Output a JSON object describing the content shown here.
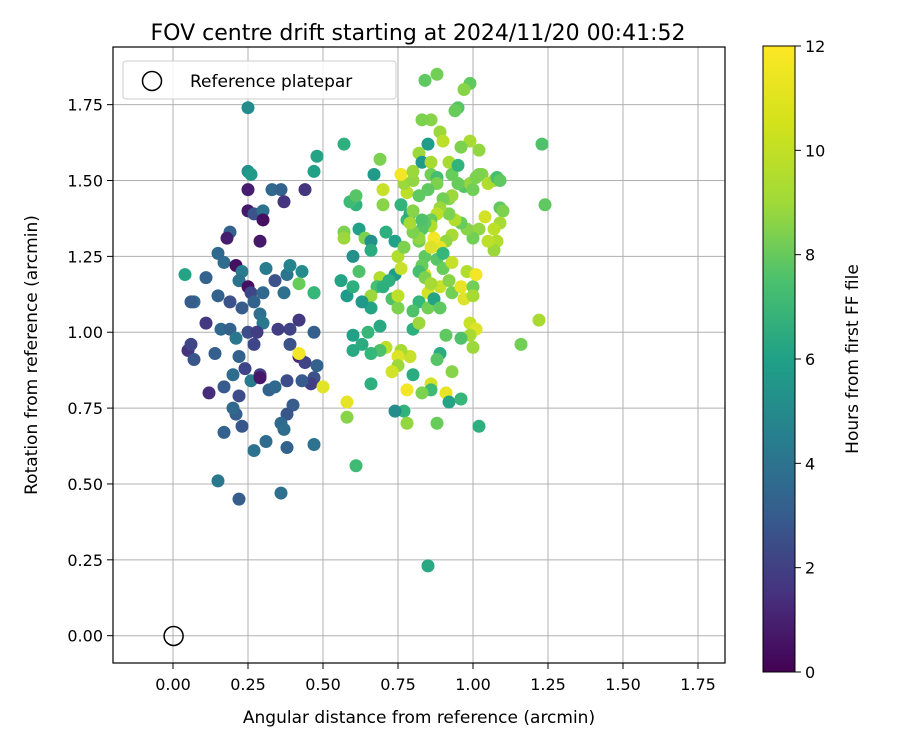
{
  "chart_data": {
    "type": "scatter",
    "title": "FOV centre drift starting at 2024/11/20 00:41:52",
    "xlabel": "Angular distance from reference (arcmin)",
    "ylabel": "Rotation from reference (arcmin)",
    "xlim": [
      -0.2,
      1.84
    ],
    "ylim": [
      -0.09,
      1.94
    ],
    "xticks": [
      "0.00",
      "0.25",
      "0.50",
      "0.75",
      "1.00",
      "1.25",
      "1.50",
      "1.75"
    ],
    "yticks": [
      "0.00",
      "0.25",
      "0.50",
      "0.75",
      "1.00",
      "1.25",
      "1.50",
      "1.75"
    ],
    "grid": true,
    "legend": {
      "placement": "top-left",
      "entries": [
        "Reference platepar"
      ]
    },
    "reference_point": {
      "x": 0.0,
      "y": 0.0,
      "marker": "hollow circle"
    },
    "colorbar": {
      "label": "Hours from first FF file",
      "ticks": [
        "0",
        "2",
        "4",
        "6",
        "8",
        "10",
        "12"
      ],
      "range": [
        0,
        12
      ],
      "colormap": "viridis"
    },
    "points": [
      [
        0.25,
        1.74,
        5.8
      ],
      [
        0.25,
        1.53,
        6.0
      ],
      [
        0.26,
        1.52,
        6.5
      ],
      [
        0.25,
        1.47,
        1.0
      ],
      [
        0.25,
        1.4,
        0.8
      ],
      [
        0.27,
        1.39,
        3.0
      ],
      [
        0.3,
        1.4,
        4.5
      ],
      [
        0.3,
        1.37,
        0.5
      ],
      [
        0.29,
        1.3,
        0.8
      ],
      [
        0.19,
        1.33,
        3.8
      ],
      [
        0.18,
        1.31,
        1.0
      ],
      [
        0.15,
        1.26,
        4.0
      ],
      [
        0.17,
        1.23,
        4.2
      ],
      [
        0.21,
        1.22,
        0.5
      ],
      [
        0.23,
        1.2,
        5.0
      ],
      [
        0.22,
        1.17,
        4.6
      ],
      [
        0.25,
        1.15,
        0.5
      ],
      [
        0.26,
        1.13,
        2.5
      ],
      [
        0.27,
        1.1,
        3.8
      ],
      [
        0.23,
        1.08,
        3.5
      ],
      [
        0.19,
        1.1,
        3.0
      ],
      [
        0.15,
        1.12,
        3.8
      ],
      [
        0.11,
        1.18,
        3.8
      ],
      [
        0.07,
        1.1,
        4.2
      ],
      [
        0.06,
        1.1,
        3.5
      ],
      [
        0.04,
        1.19,
        7.0
      ],
      [
        0.11,
        1.03,
        2.0
      ],
      [
        0.16,
        1.01,
        4.0
      ],
      [
        0.19,
        1.01,
        3.8
      ],
      [
        0.21,
        0.98,
        4.8
      ],
      [
        0.25,
        1.0,
        2.8
      ],
      [
        0.27,
        0.96,
        2.5
      ],
      [
        0.29,
        1.06,
        4.4
      ],
      [
        0.3,
        1.03,
        4.8
      ],
      [
        0.3,
        1.13,
        4.0
      ],
      [
        0.31,
        1.21,
        5.0
      ],
      [
        0.34,
        1.17,
        3.0
      ],
      [
        0.37,
        1.13,
        4.4
      ],
      [
        0.38,
        1.19,
        4.6
      ],
      [
        0.39,
        1.22,
        5.4
      ],
      [
        0.43,
        1.2,
        5.8
      ],
      [
        0.47,
        1.13,
        6.5
      ],
      [
        0.35,
        1.01,
        2.2
      ],
      [
        0.39,
        0.96,
        3.0
      ],
      [
        0.42,
        1.04,
        2.0
      ],
      [
        0.42,
        0.92,
        1.2
      ],
      [
        0.44,
        0.9,
        2.4
      ],
      [
        0.48,
        0.89,
        3.8
      ],
      [
        0.47,
        0.85,
        3.0
      ],
      [
        0.46,
        0.83,
        2.2
      ],
      [
        0.47,
        1.0,
        3.6
      ],
      [
        0.43,
        0.84,
        3.4
      ],
      [
        0.4,
        0.76,
        3.5
      ],
      [
        0.38,
        0.73,
        3.2
      ],
      [
        0.36,
        0.7,
        4.0
      ],
      [
        0.37,
        0.68,
        4.2
      ],
      [
        0.31,
        0.64,
        4.2
      ],
      [
        0.27,
        0.61,
        4.5
      ],
      [
        0.38,
        0.62,
        3.8
      ],
      [
        0.47,
        0.63,
        4.5
      ],
      [
        0.36,
        0.47,
        4.4
      ],
      [
        0.22,
        0.45,
        3.5
      ],
      [
        0.15,
        0.51,
        4.8
      ],
      [
        0.17,
        0.67,
        3.8
      ],
      [
        0.21,
        0.73,
        3.6
      ],
      [
        0.23,
        0.69,
        3.2
      ],
      [
        0.22,
        0.79,
        2.8
      ],
      [
        0.2,
        0.75,
        4.0
      ],
      [
        0.2,
        0.86,
        4.2
      ],
      [
        0.22,
        0.92,
        3.8
      ],
      [
        0.24,
        0.88,
        2.5
      ],
      [
        0.26,
        0.84,
        5.0
      ],
      [
        0.29,
        0.86,
        2.2
      ],
      [
        0.29,
        0.85,
        0.8
      ],
      [
        0.32,
        0.81,
        3.8
      ],
      [
        0.34,
        0.82,
        4.0
      ],
      [
        0.38,
        0.84,
        2.8
      ],
      [
        0.12,
        0.8,
        1.5
      ],
      [
        0.17,
        0.82,
        3.4
      ],
      [
        0.14,
        0.93,
        3.6
      ],
      [
        0.05,
        0.94,
        1.8
      ],
      [
        0.07,
        0.91,
        3.2
      ],
      [
        0.06,
        0.96,
        2.5
      ],
      [
        0.28,
        1.0,
        2.2
      ],
      [
        0.33,
        1.47,
        4.0
      ],
      [
        0.36,
        1.47,
        3.8
      ],
      [
        0.37,
        1.43,
        1.8
      ],
      [
        0.44,
        1.47,
        1.8
      ],
      [
        0.39,
        1.01,
        2.4
      ],
      [
        0.42,
        0.93,
        11.8
      ],
      [
        0.5,
        0.82,
        11.5
      ],
      [
        0.42,
        1.16,
        9.2
      ],
      [
        0.48,
        1.58,
        7.0
      ],
      [
        0.47,
        1.53,
        6.8
      ],
      [
        0.47,
        1.13,
        8.0
      ],
      [
        0.57,
        1.62,
        7.6
      ],
      [
        0.61,
        1.42,
        7.8
      ],
      [
        0.57,
        1.33,
        9.6
      ],
      [
        0.57,
        1.31,
        10.2
      ],
      [
        0.56,
        1.17,
        7.0
      ],
      [
        0.58,
        1.12,
        6.5
      ],
      [
        0.6,
        1.15,
        7.6
      ],
      [
        0.62,
        1.2,
        8.6
      ],
      [
        0.6,
        1.25,
        6.0
      ],
      [
        0.59,
        1.43,
        8.2
      ],
      [
        0.61,
        1.45,
        8.8
      ],
      [
        0.62,
        1.34,
        6.8
      ],
      [
        0.64,
        1.31,
        9.6
      ],
      [
        0.66,
        1.3,
        6.0
      ],
      [
        0.66,
        1.27,
        7.4
      ],
      [
        0.67,
        1.52,
        6.5
      ],
      [
        0.69,
        1.57,
        9.6
      ],
      [
        0.7,
        1.47,
        11.0
      ],
      [
        0.7,
        1.42,
        9.8
      ],
      [
        0.71,
        1.33,
        7.6
      ],
      [
        0.69,
        1.18,
        10.6
      ],
      [
        0.68,
        1.15,
        8.4
      ],
      [
        0.66,
        1.12,
        10.2
      ],
      [
        0.7,
        1.15,
        7.6
      ],
      [
        0.74,
        1.3,
        6.8
      ],
      [
        0.75,
        1.25,
        10.6
      ],
      [
        0.74,
        1.19,
        6.5
      ],
      [
        0.72,
        1.17,
        7.6
      ],
      [
        0.73,
        1.11,
        8.6
      ],
      [
        0.75,
        1.08,
        9.6
      ],
      [
        0.75,
        1.12,
        10.8
      ],
      [
        0.76,
        1.21,
        11.0
      ],
      [
        0.77,
        1.28,
        9.6
      ],
      [
        0.78,
        1.37,
        8.0
      ],
      [
        0.79,
        1.39,
        7.4
      ],
      [
        0.76,
        1.42,
        7.8
      ],
      [
        0.78,
        1.46,
        10.8
      ],
      [
        0.77,
        1.49,
        10.2
      ],
      [
        0.76,
        1.52,
        11.8
      ],
      [
        0.8,
        1.5,
        10.0
      ],
      [
        0.82,
        1.45,
        9.0
      ],
      [
        0.82,
        1.3,
        9.4
      ],
      [
        0.84,
        1.25,
        9.0
      ],
      [
        0.84,
        1.19,
        11.4
      ],
      [
        0.85,
        1.13,
        11.2
      ],
      [
        0.82,
        1.1,
        8.0
      ],
      [
        0.8,
        1.07,
        8.6
      ],
      [
        0.8,
        1.01,
        7.6
      ],
      [
        0.82,
        1.03,
        10.2
      ],
      [
        0.85,
        1.08,
        9.4
      ],
      [
        0.87,
        1.11,
        7.0
      ],
      [
        0.89,
        1.08,
        9.0
      ],
      [
        0.89,
        1.15,
        11.0
      ],
      [
        0.92,
        1.17,
        9.8
      ],
      [
        0.93,
        1.13,
        9.4
      ],
      [
        0.96,
        1.15,
        11.6
      ],
      [
        0.97,
        1.11,
        11.4
      ],
      [
        0.98,
        1.2,
        10.6
      ],
      [
        1.0,
        1.15,
        9.4
      ],
      [
        1.01,
        1.19,
        11.8
      ],
      [
        1.0,
        1.12,
        10.4
      ],
      [
        0.99,
        1.03,
        11.0
      ],
      [
        1.01,
        1.01,
        11.4
      ],
      [
        0.99,
        0.99,
        10.4
      ],
      [
        1.0,
        0.95,
        10.2
      ],
      [
        0.96,
        0.98,
        8.6
      ],
      [
        0.91,
        0.99,
        9.0
      ],
      [
        0.89,
        0.93,
        7.4
      ],
      [
        0.88,
        0.91,
        8.8
      ],
      [
        0.86,
        0.83,
        11.2
      ],
      [
        0.86,
        0.81,
        8.2
      ],
      [
        0.83,
        0.8,
        9.6
      ],
      [
        0.8,
        0.86,
        7.4
      ],
      [
        0.79,
        0.92,
        11.0
      ],
      [
        0.76,
        0.94,
        10.4
      ],
      [
        0.75,
        0.92,
        11.4
      ],
      [
        0.75,
        0.89,
        10.2
      ],
      [
        0.73,
        0.87,
        11.2
      ],
      [
        0.71,
        0.95,
        10.8
      ],
      [
        0.69,
        0.94,
        8.6
      ],
      [
        0.66,
        0.93,
        8.0
      ],
      [
        0.66,
        0.83,
        7.6
      ],
      [
        0.63,
        0.96,
        7.4
      ],
      [
        0.6,
        0.94,
        7.2
      ],
      [
        0.6,
        0.99,
        6.8
      ],
      [
        0.65,
        1.0,
        8.0
      ],
      [
        0.69,
        1.02,
        7.2
      ],
      [
        0.66,
        1.08,
        7.0
      ],
      [
        0.63,
        1.1,
        6.4
      ],
      [
        0.58,
        0.77,
        11.6
      ],
      [
        0.58,
        0.72,
        9.8
      ],
      [
        0.61,
        0.56,
        8.2
      ],
      [
        0.77,
        0.74,
        7.8
      ],
      [
        0.74,
        0.74,
        5.8
      ],
      [
        0.78,
        0.7,
        10.0
      ],
      [
        0.85,
        0.23,
        7.2
      ],
      [
        0.88,
        0.7,
        9.2
      ],
      [
        0.91,
        0.8,
        11.6
      ],
      [
        0.92,
        0.77,
        7.0
      ],
      [
        0.96,
        0.78,
        8.0
      ],
      [
        1.02,
        0.69,
        7.6
      ],
      [
        0.93,
        0.87,
        9.8
      ],
      [
        0.78,
        0.81,
        11.8
      ],
      [
        0.86,
        1.7,
        9.8
      ],
      [
        0.84,
        1.83,
        9.0
      ],
      [
        0.88,
        1.85,
        9.4
      ],
      [
        0.99,
        1.82,
        9.0
      ],
      [
        0.97,
        1.8,
        9.8
      ],
      [
        0.95,
        1.74,
        8.8
      ],
      [
        0.94,
        1.73,
        9.2
      ],
      [
        0.89,
        1.66,
        10.2
      ],
      [
        0.9,
        1.63,
        10.8
      ],
      [
        0.85,
        1.62,
        6.6
      ],
      [
        0.83,
        1.7,
        9.6
      ],
      [
        0.82,
        1.59,
        10.2
      ],
      [
        0.83,
        1.56,
        6.4
      ],
      [
        0.86,
        1.56,
        10.4
      ],
      [
        0.86,
        1.52,
        9.4
      ],
      [
        0.88,
        1.51,
        8.4
      ],
      [
        0.88,
        1.49,
        9.6
      ],
      [
        0.85,
        1.47,
        9.0
      ],
      [
        0.92,
        1.56,
        10.4
      ],
      [
        0.93,
        1.52,
        9.2
      ],
      [
        0.95,
        1.55,
        7.8
      ],
      [
        0.97,
        1.48,
        8.8
      ],
      [
        0.99,
        1.49,
        10.0
      ],
      [
        1.0,
        1.47,
        9.4
      ],
      [
        1.01,
        1.51,
        9.6
      ],
      [
        1.03,
        1.52,
        9.8
      ],
      [
        1.02,
        1.6,
        10.0
      ],
      [
        0.99,
        1.63,
        10.4
      ],
      [
        1.02,
        1.52,
        9.6
      ],
      [
        1.05,
        1.49,
        10.6
      ],
      [
        1.07,
        1.5,
        10.4
      ],
      [
        1.08,
        1.51,
        8.4
      ],
      [
        1.09,
        1.5,
        9.0
      ],
      [
        1.09,
        1.41,
        9.0
      ],
      [
        1.1,
        1.4,
        9.6
      ],
      [
        1.09,
        1.36,
        10.4
      ],
      [
        1.07,
        1.34,
        10.8
      ],
      [
        1.08,
        1.3,
        10.6
      ],
      [
        1.07,
        1.27,
        10.2
      ],
      [
        1.04,
        1.38,
        11.2
      ],
      [
        1.02,
        1.34,
        10.0
      ],
      [
        1.0,
        1.31,
        9.4
      ],
      [
        0.98,
        1.34,
        9.8
      ],
      [
        0.96,
        1.36,
        9.2
      ],
      [
        0.94,
        1.37,
        10.6
      ],
      [
        0.93,
        1.32,
        10.4
      ],
      [
        0.91,
        1.3,
        10.0
      ],
      [
        0.89,
        1.28,
        11.6
      ],
      [
        0.87,
        1.31,
        11.8
      ],
      [
        0.86,
        1.28,
        11.4
      ],
      [
        0.83,
        1.22,
        9.2
      ],
      [
        0.82,
        1.2,
        8.4
      ],
      [
        0.84,
        1.18,
        9.6
      ],
      [
        0.86,
        1.16,
        10.4
      ],
      [
        0.88,
        1.24,
        8.8
      ],
      [
        0.9,
        1.26,
        8.0
      ],
      [
        0.9,
        1.21,
        9.2
      ],
      [
        0.93,
        1.23,
        11.0
      ],
      [
        0.92,
        1.39,
        9.6
      ],
      [
        0.92,
        1.44,
        9.8
      ],
      [
        0.93,
        1.45,
        10.2
      ],
      [
        0.9,
        1.44,
        9.4
      ],
      [
        0.89,
        1.41,
        10.2
      ],
      [
        0.88,
        1.39,
        10.8
      ],
      [
        0.86,
        1.37,
        9.2
      ],
      [
        0.86,
        1.35,
        10.6
      ],
      [
        0.84,
        1.36,
        9.0
      ],
      [
        0.83,
        1.34,
        8.8
      ],
      [
        0.82,
        1.31,
        10.0
      ],
      [
        0.8,
        1.33,
        9.6
      ],
      [
        0.79,
        1.36,
        10.4
      ],
      [
        0.8,
        1.4,
        9.8
      ],
      [
        1.05,
        1.3,
        10.8
      ],
      [
        1.16,
        0.96,
        9.4
      ],
      [
        1.22,
        1.04,
        10.4
      ],
      [
        1.23,
        1.62,
        8.6
      ],
      [
        1.24,
        1.42,
        9.0
      ],
      [
        0.95,
        1.49,
        9.2
      ],
      [
        0.96,
        1.61,
        9.6
      ],
      [
        0.83,
        1.37,
        8.6
      ],
      [
        0.8,
        1.53,
        10.2
      ]
    ]
  }
}
